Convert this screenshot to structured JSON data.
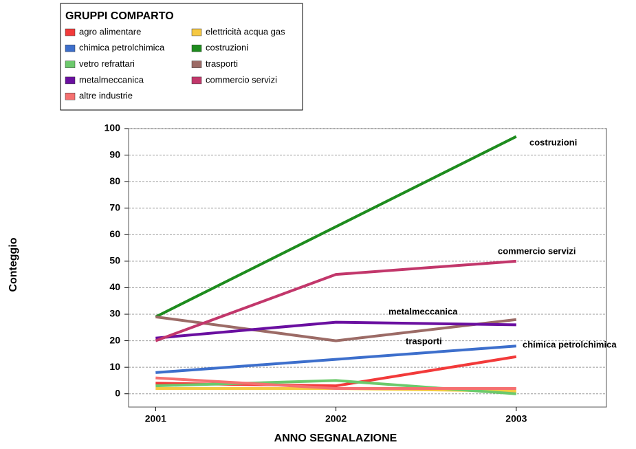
{
  "chart_data": {
    "type": "line",
    "legend_title": "GRUPPI COMPARTO",
    "xlabel": "ANNO SEGNALAZIONE",
    "ylabel": "Conteggio",
    "x": [
      2001,
      2002,
      2003
    ],
    "xlim": [
      2000.85,
      2003.5
    ],
    "xticks": [
      2001,
      2002,
      2003
    ],
    "ylim": [
      -5,
      100
    ],
    "yticks": [
      0,
      10,
      20,
      30,
      40,
      50,
      60,
      70,
      80,
      90,
      100
    ],
    "grid": true,
    "legend": "top-left",
    "series": [
      {
        "name": "agro alimentare",
        "color": "#f23a3a",
        "values": [
          4,
          3,
          14
        ]
      },
      {
        "name": "elettricità acqua gas",
        "color": "#f5c842",
        "values": [
          2,
          2,
          1
        ]
      },
      {
        "name": "chimica petrolchimica",
        "color": "#3d6fcc",
        "values": [
          8,
          13,
          18
        ]
      },
      {
        "name": "costruzioni",
        "color": "#1e8c1e",
        "values": [
          29,
          63,
          97
        ]
      },
      {
        "name": "vetro refrattari",
        "color": "#6cc96c",
        "values": [
          3,
          5,
          0
        ]
      },
      {
        "name": "trasporti",
        "color": "#9c6b66",
        "values": [
          29,
          20,
          28
        ]
      },
      {
        "name": "metalmeccanica",
        "color": "#6a0fa0",
        "values": [
          21,
          27,
          26
        ]
      },
      {
        "name": "commercio servizi",
        "color": "#c2376b",
        "values": [
          20,
          45,
          50
        ]
      },
      {
        "name": "altre industrie",
        "color": "#f57070",
        "values": [
          6,
          2,
          2
        ]
      }
    ],
    "annotations": [
      "costruzioni",
      "commercio servizi",
      "metalmeccanica",
      "trasporti",
      "chimica petrolchimica"
    ]
  }
}
